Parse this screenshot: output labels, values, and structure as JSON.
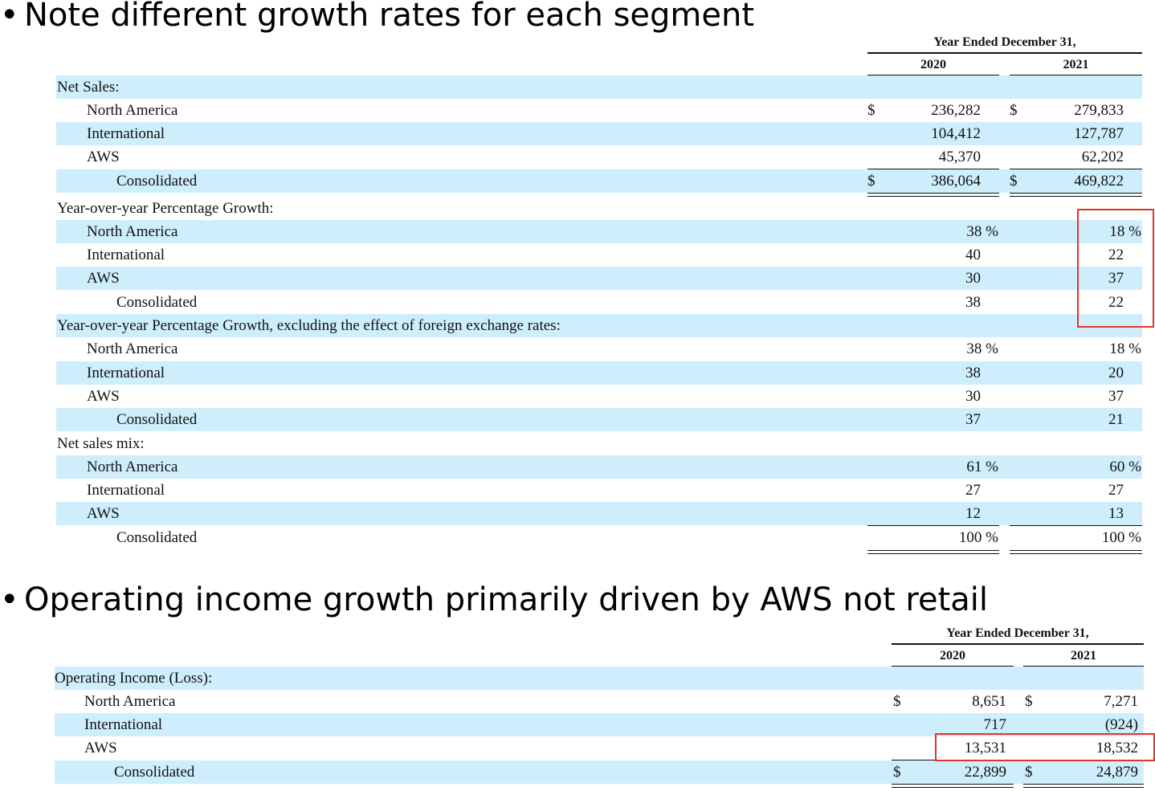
{
  "bullets": {
    "first": "Note different growth rates for each segment",
    "second": "Operating income growth primarily driven by AWS not retail",
    "marker": "•"
  },
  "colors": {
    "row_shade": "#cfeefc",
    "highlight_box": "#e5332a"
  },
  "table1": {
    "period_header": "Year Ended December 31,",
    "years": [
      "2020",
      "2021"
    ],
    "rows": [
      {
        "label": "Net Sales:",
        "indent": 0,
        "v2020": "",
        "v2021": "",
        "cur2020": "",
        "cur2021": ""
      },
      {
        "label": "North America",
        "indent": 1,
        "v2020": "236,282",
        "v2021": "279,833",
        "cur2020": "$",
        "cur2021": "$"
      },
      {
        "label": "International",
        "indent": 1,
        "v2020": "104,412",
        "v2021": "127,787",
        "cur2020": "",
        "cur2021": ""
      },
      {
        "label": "AWS",
        "indent": 1,
        "v2020": "45,370",
        "v2021": "62,202",
        "cur2020": "",
        "cur2021": ""
      },
      {
        "label": "Consolidated",
        "indent": 2,
        "v2020": "386,064",
        "v2021": "469,822",
        "cur2020": "$",
        "cur2021": "$"
      },
      {
        "label": "Year-over-year Percentage Growth:",
        "indent": 0,
        "v2020": "",
        "v2021": "",
        "cur2020": "",
        "cur2021": ""
      },
      {
        "label": "North America",
        "indent": 1,
        "v2020": "38 %",
        "v2021": "18 %",
        "cur2020": "",
        "cur2021": ""
      },
      {
        "label": "International",
        "indent": 1,
        "v2020": "40",
        "v2021": "22",
        "cur2020": "",
        "cur2021": ""
      },
      {
        "label": "AWS",
        "indent": 1,
        "v2020": "30",
        "v2021": "37",
        "cur2020": "",
        "cur2021": ""
      },
      {
        "label": "Consolidated",
        "indent": 2,
        "v2020": "38",
        "v2021": "22",
        "cur2020": "",
        "cur2021": ""
      },
      {
        "label": "Year-over-year Percentage Growth, excluding the effect of foreign exchange rates:",
        "indent": 0,
        "v2020": "",
        "v2021": "",
        "cur2020": "",
        "cur2021": ""
      },
      {
        "label": "North America",
        "indent": 1,
        "v2020": "38 %",
        "v2021": "18 %",
        "cur2020": "",
        "cur2021": ""
      },
      {
        "label": "International",
        "indent": 1,
        "v2020": "38",
        "v2021": "20",
        "cur2020": "",
        "cur2021": ""
      },
      {
        "label": "AWS",
        "indent": 1,
        "v2020": "30",
        "v2021": "37",
        "cur2020": "",
        "cur2021": ""
      },
      {
        "label": "Consolidated",
        "indent": 2,
        "v2020": "37",
        "v2021": "21",
        "cur2020": "",
        "cur2021": ""
      },
      {
        "label": "Net sales mix:",
        "indent": 0,
        "v2020": "",
        "v2021": "",
        "cur2020": "",
        "cur2021": ""
      },
      {
        "label": "North America",
        "indent": 1,
        "v2020": "61 %",
        "v2021": "60 %",
        "cur2020": "",
        "cur2021": ""
      },
      {
        "label": "International",
        "indent": 1,
        "v2020": "27",
        "v2021": "27",
        "cur2020": "",
        "cur2021": ""
      },
      {
        "label": "AWS",
        "indent": 1,
        "v2020": "12",
        "v2021": "13",
        "cur2020": "",
        "cur2021": ""
      },
      {
        "label": "Consolidated",
        "indent": 2,
        "v2020": "100 %",
        "v2021": "100 %",
        "cur2020": "",
        "cur2021": ""
      }
    ]
  },
  "table2": {
    "period_header": "Year Ended December 31,",
    "years": [
      "2020",
      "2021"
    ],
    "rows": [
      {
        "label": "Operating Income (Loss):",
        "indent": 0,
        "v2020": "",
        "v2021": "",
        "cur2020": "",
        "cur2021": ""
      },
      {
        "label": "North America",
        "indent": 1,
        "v2020": "8,651",
        "v2021": "7,271",
        "cur2020": "$",
        "cur2021": "$"
      },
      {
        "label": "International",
        "indent": 1,
        "v2020": "717",
        "v2021": "(924)",
        "cur2020": "",
        "cur2021": ""
      },
      {
        "label": "AWS",
        "indent": 1,
        "v2020": "13,531",
        "v2021": "18,532",
        "cur2020": "",
        "cur2021": ""
      },
      {
        "label": "Consolidated",
        "indent": 2,
        "v2020": "22,899",
        "v2021": "24,879",
        "cur2020": "$",
        "cur2021": "$"
      }
    ]
  }
}
